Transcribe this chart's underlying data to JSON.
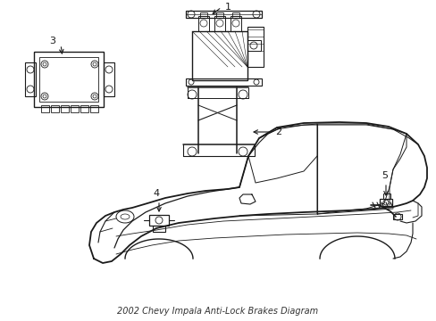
{
  "title": "2002 Chevy Impala Anti-Lock Brakes Diagram",
  "bg_color": "#ffffff",
  "line_color": "#1a1a1a",
  "lw_main": 1.0,
  "lw_detail": 0.6,
  "label_fontsize": 8
}
